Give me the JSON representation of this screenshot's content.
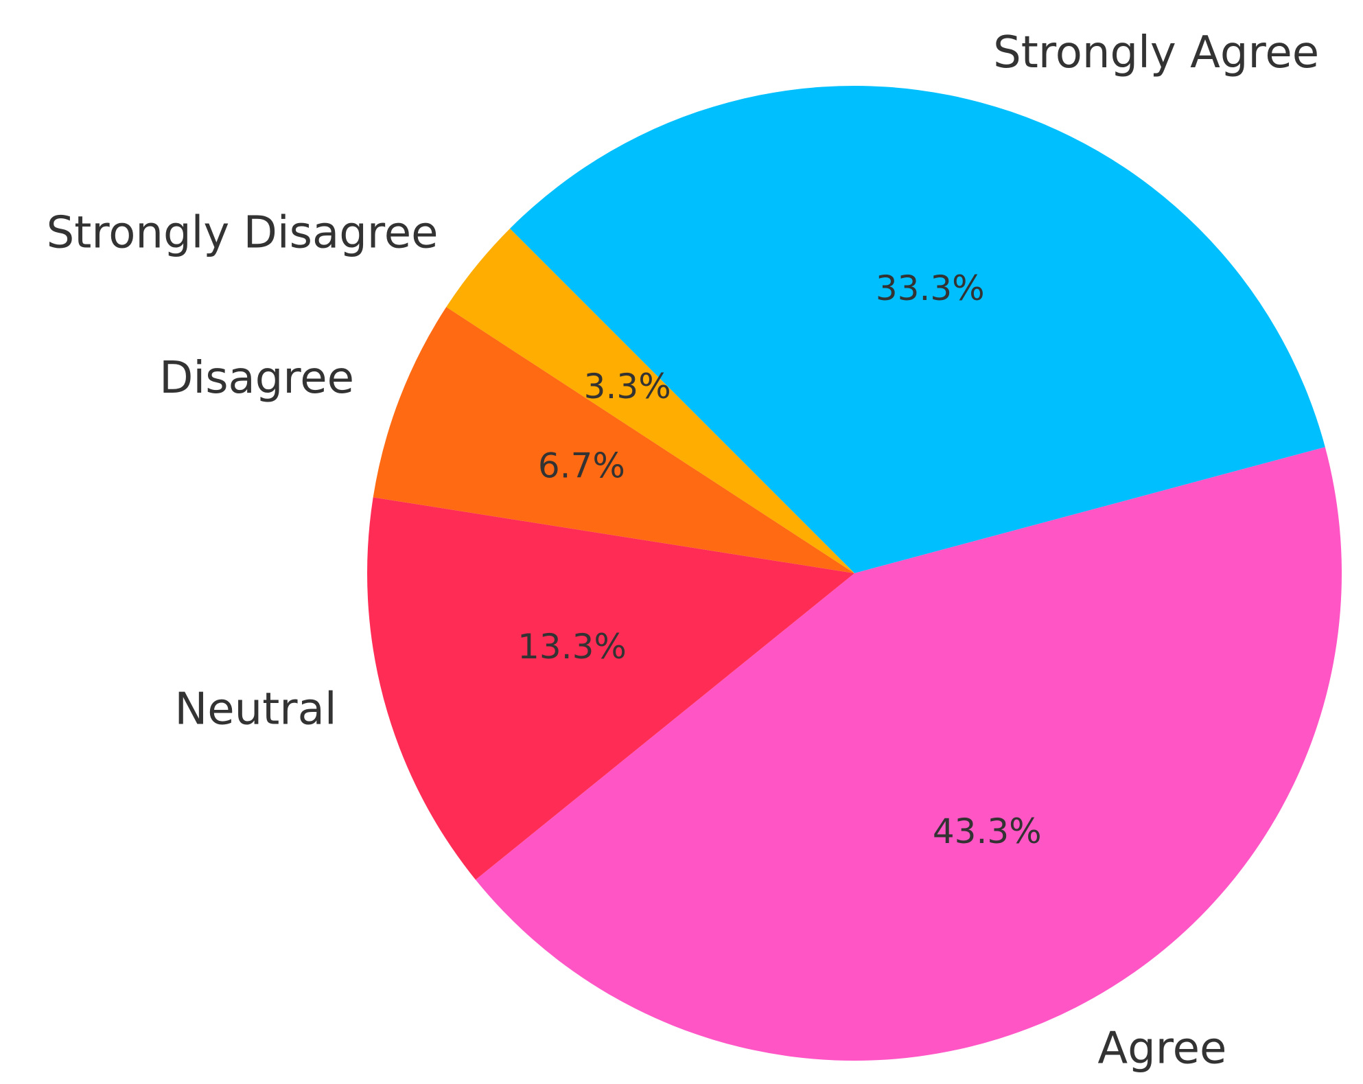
{
  "chart_data": {
    "type": "pie",
    "title": "",
    "categories": [
      "Strongly Agree",
      "Agree",
      "Neutral",
      "Disagree",
      "Strongly Disagree"
    ],
    "values": [
      33.3,
      43.3,
      13.3,
      6.7,
      3.3
    ],
    "labels": [
      "33.3%",
      "43.3%",
      "13.3%",
      "6.7%",
      "3.3%"
    ],
    "colors": [
      "#00BFFF",
      "#FF55C5",
      "#FF2D55",
      "#FF6A12",
      "#FFAD00"
    ],
    "start_angle_deg": 135,
    "direction": "clockwise",
    "legend": "none"
  }
}
